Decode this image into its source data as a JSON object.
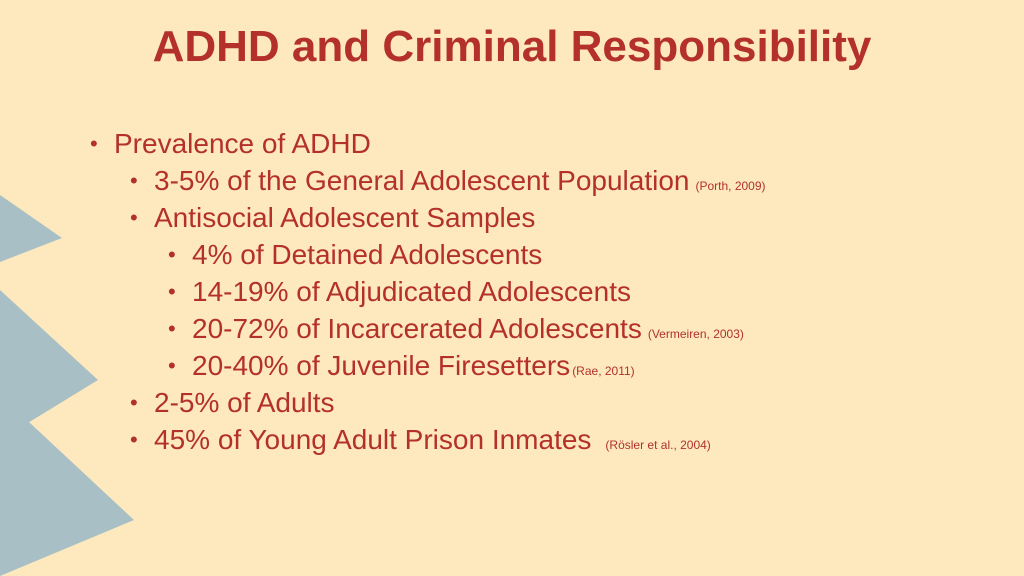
{
  "slide": {
    "title": "ADHD and Criminal Responsibility",
    "colors": {
      "background": "#fde9bd",
      "text": "#b3312a",
      "decor": "#a9bfc6"
    },
    "bullets": [
      {
        "text": "Prevalence of ADHD",
        "cite": ""
      },
      {
        "text": "3-5% of the General Adolescent Population",
        "cite": "(Porth, 2009)"
      },
      {
        "text": "Antisocial Adolescent Samples",
        "cite": ""
      },
      {
        "text": "4% of Detained Adolescents",
        "cite": ""
      },
      {
        "text": "14-19% of Adjudicated Adolescents",
        "cite": ""
      },
      {
        "text": "20-72% of Incarcerated Adolescents",
        "cite": "(Vermeiren, 2003)"
      },
      {
        "text": "20-40% of Juvenile Firesetters",
        "cite": "(Rae, 2011)"
      },
      {
        "text": "2-5% of Adults",
        "cite": ""
      },
      {
        "text": "45% of Young Adult Prison Inmates",
        "cite": "(Rösler et al., 2004)"
      }
    ]
  }
}
